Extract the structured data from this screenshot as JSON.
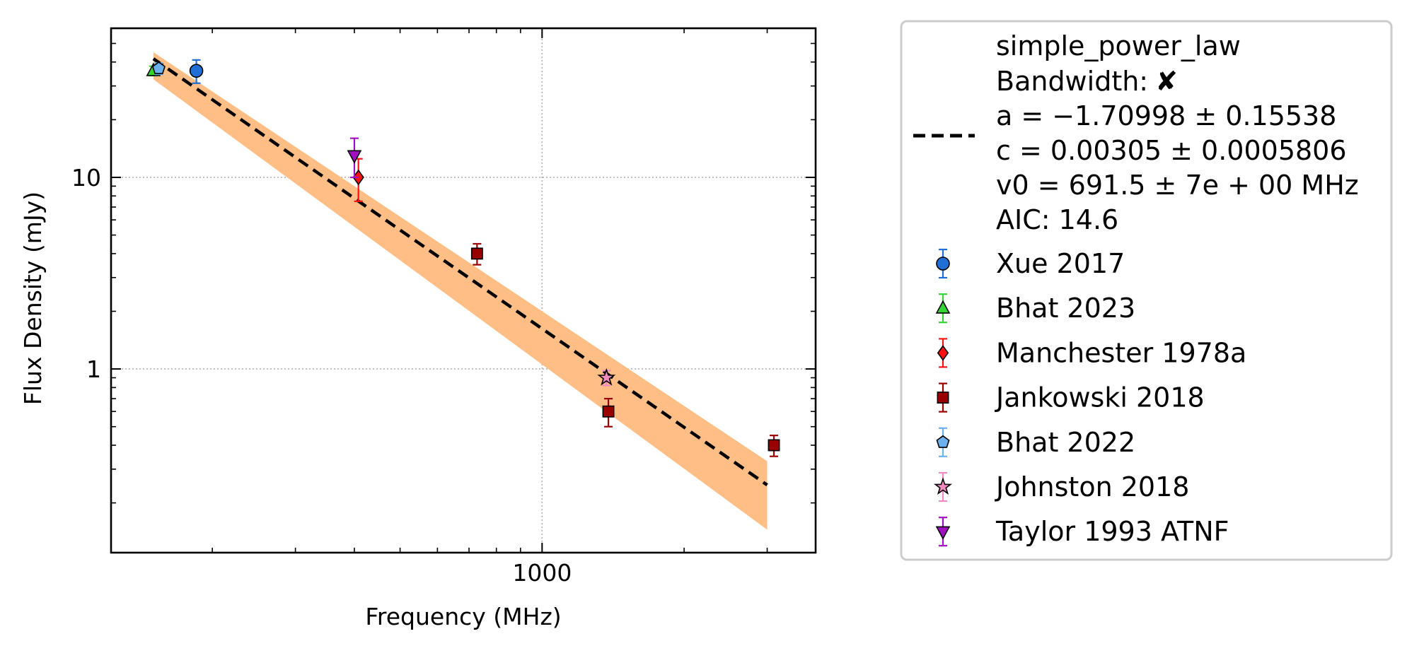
{
  "chart_data": {
    "type": "scatter",
    "xlabel": "Frequency (MHz)",
    "ylabel": "Flux Density (mJy)",
    "x_scale": "log",
    "y_scale": "log",
    "xlim": [
      122,
      3800
    ],
    "ylim": [
      0.11,
      60
    ],
    "x_ticks": [
      {
        "value": 1000,
        "label": "1000"
      }
    ],
    "y_ticks": [
      {
        "value": 1,
        "label": "1"
      },
      {
        "value": 10,
        "label": "10"
      }
    ],
    "grid": true,
    "legend_position": "outside-right",
    "fit": {
      "name": "simple_power_law",
      "bandwidth_label": "Bandwidth:",
      "bandwidth_mark": "✘",
      "a_line": "a = −1.70998 ± 0.15538",
      "c_line": "c = 0.00305 ± 0.0005806",
      "v0_line": "v0 = 691.5 ± 7e + 00 MHz",
      "aic_line": "AIC: 14.6",
      "a": -1.70998,
      "a_err": 0.15538,
      "c": 0.00305,
      "c_err": 0.0005806,
      "v0": 691.5,
      "band_low": [
        [
          150,
          32.5
        ],
        [
          3000,
          0.145
        ]
      ],
      "band_high": [
        [
          150,
          45
        ],
        [
          3000,
          0.33
        ]
      ],
      "x_range": [
        150,
        3000
      ],
      "line_color": "#000000",
      "band_color": "#ffbe86"
    },
    "series": [
      {
        "name": "Xue 2017",
        "marker": "circle",
        "color": "#1f6fd6",
        "points": [
          {
            "x": 185,
            "y": 36,
            "yerr_low": 31,
            "yerr_high": 41
          }
        ]
      },
      {
        "name": "Bhat 2023",
        "marker": "triangle",
        "color": "#35d435",
        "points": [
          {
            "x": 150,
            "y": 36,
            "yerr_low": 34,
            "yerr_high": 38
          }
        ]
      },
      {
        "name": "Manchester 1978a",
        "marker": "diamond",
        "color": "#ff1010",
        "points": [
          {
            "x": 408,
            "y": 10,
            "yerr_low": 7.5,
            "yerr_high": 12.5
          }
        ]
      },
      {
        "name": "Jankowski 2018",
        "marker": "square",
        "color": "#990000",
        "points": [
          {
            "x": 728,
            "y": 4.0,
            "yerr_low": 3.5,
            "yerr_high": 4.5
          },
          {
            "x": 1382,
            "y": 0.6,
            "yerr_low": 0.5,
            "yerr_high": 0.7
          },
          {
            "x": 3100,
            "y": 0.4,
            "yerr_low": 0.35,
            "yerr_high": 0.45
          }
        ]
      },
      {
        "name": "Bhat 2022",
        "marker": "pentagon",
        "color": "#6ab1ee",
        "points": [
          {
            "x": 154,
            "y": 37,
            "yerr_low": 34.5,
            "yerr_high": 39.5
          }
        ]
      },
      {
        "name": "Johnston 2018",
        "marker": "star",
        "color": "#f08ac0",
        "points": [
          {
            "x": 1369,
            "y": 0.9,
            "yerr_low": 0.82,
            "yerr_high": 0.98
          }
        ]
      },
      {
        "name": "Taylor 1993 ATNF",
        "marker": "triangle-down",
        "color": "#a010c0",
        "points": [
          {
            "x": 400,
            "y": 13,
            "yerr_low": 10,
            "yerr_high": 16
          }
        ]
      }
    ]
  }
}
